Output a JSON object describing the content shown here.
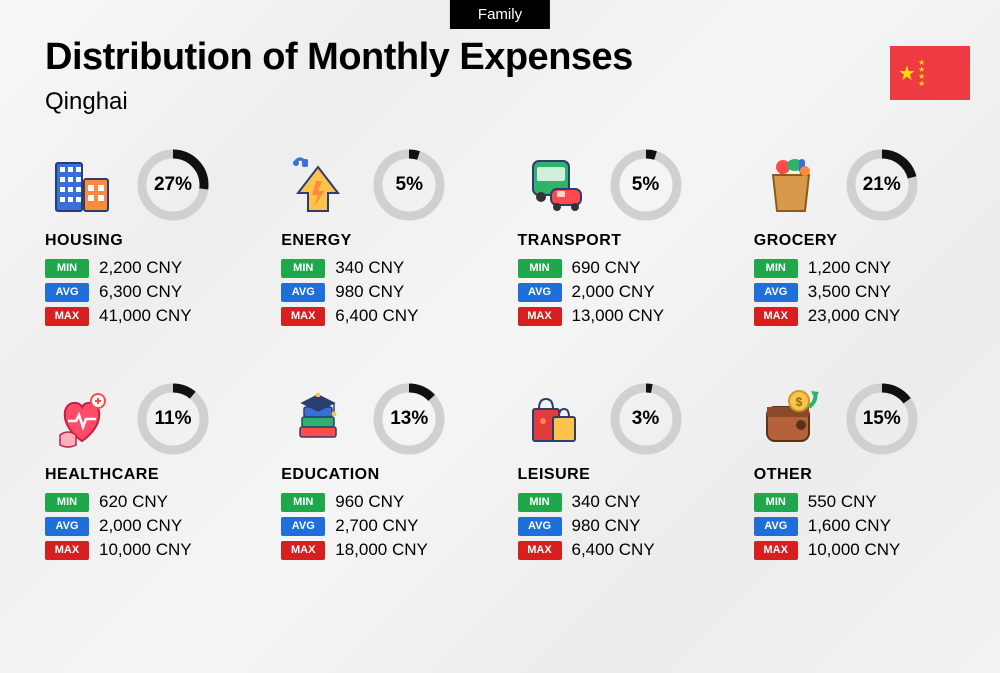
{
  "tag": "Family",
  "title": "Distribution of Monthly Expenses",
  "subtitle": "Qinghai",
  "currency": "CNY",
  "labels": {
    "min": "MIN",
    "avg": "AVG",
    "max": "MAX"
  },
  "donut": {
    "radius": 31,
    "stroke_width": 9,
    "bg_color": "#d0d0d0",
    "fg_color": "#111111",
    "text_fontsize": 19
  },
  "badge_colors": {
    "min": "#1fa84b",
    "avg": "#1e6fd9",
    "max": "#d81f1f"
  },
  "flag": {
    "bg": "#ee3a43",
    "star": "#ffde00"
  },
  "categories": [
    {
      "key": "housing",
      "name": "HOUSING",
      "pct": 27,
      "pct_label": "27%",
      "min": "2,200 CNY",
      "avg": "6,300 CNY",
      "max": "41,000 CNY",
      "icon": "housing"
    },
    {
      "key": "energy",
      "name": "ENERGY",
      "pct": 5,
      "pct_label": "5%",
      "min": "340 CNY",
      "avg": "980 CNY",
      "max": "6,400 CNY",
      "icon": "energy"
    },
    {
      "key": "transport",
      "name": "TRANSPORT",
      "pct": 5,
      "pct_label": "5%",
      "min": "690 CNY",
      "avg": "2,000 CNY",
      "max": "13,000 CNY",
      "icon": "transport"
    },
    {
      "key": "grocery",
      "name": "GROCERY",
      "pct": 21,
      "pct_label": "21%",
      "min": "1,200 CNY",
      "avg": "3,500 CNY",
      "max": "23,000 CNY",
      "icon": "grocery"
    },
    {
      "key": "healthcare",
      "name": "HEALTHCARE",
      "pct": 11,
      "pct_label": "11%",
      "min": "620 CNY",
      "avg": "2,000 CNY",
      "max": "10,000 CNY",
      "icon": "healthcare"
    },
    {
      "key": "education",
      "name": "EDUCATION",
      "pct": 13,
      "pct_label": "13%",
      "min": "960 CNY",
      "avg": "2,700 CNY",
      "max": "18,000 CNY",
      "icon": "education"
    },
    {
      "key": "leisure",
      "name": "LEISURE",
      "pct": 3,
      "pct_label": "3%",
      "min": "340 CNY",
      "avg": "980 CNY",
      "max": "6,400 CNY",
      "icon": "leisure"
    },
    {
      "key": "other",
      "name": "OTHER",
      "pct": 15,
      "pct_label": "15%",
      "min": "550 CNY",
      "avg": "1,600 CNY",
      "max": "10,000 CNY",
      "icon": "other"
    }
  ],
  "icons": {
    "housing": {
      "colors": [
        "#3a6fd8",
        "#ff8a3c",
        "#ffc24b",
        "#2a3e6f"
      ]
    },
    "energy": {
      "colors": [
        "#ffc24b",
        "#ff8a3c",
        "#3a6fd8",
        "#2a3e6f"
      ]
    },
    "transport": {
      "colors": [
        "#2fb36a",
        "#ff4b4b",
        "#ffc24b",
        "#2a3e6f"
      ]
    },
    "grocery": {
      "colors": [
        "#d89a4a",
        "#ff4b4b",
        "#2fb36a",
        "#3a6fd8",
        "#ff8a3c"
      ]
    },
    "healthcare": {
      "colors": [
        "#ff4b6a",
        "#ffb0bd",
        "#ffffff",
        "#ff4b4b"
      ]
    },
    "education": {
      "colors": [
        "#2a3e6f",
        "#2fb36a",
        "#ff4b4b",
        "#ffc24b",
        "#3a6fd8"
      ]
    },
    "leisure": {
      "colors": [
        "#e23b3b",
        "#ff8a3c",
        "#ffc24b",
        "#2a3e6f"
      ]
    },
    "other": {
      "colors": [
        "#b5623a",
        "#8a4a2a",
        "#ffc24b",
        "#2fb36a"
      ]
    }
  }
}
